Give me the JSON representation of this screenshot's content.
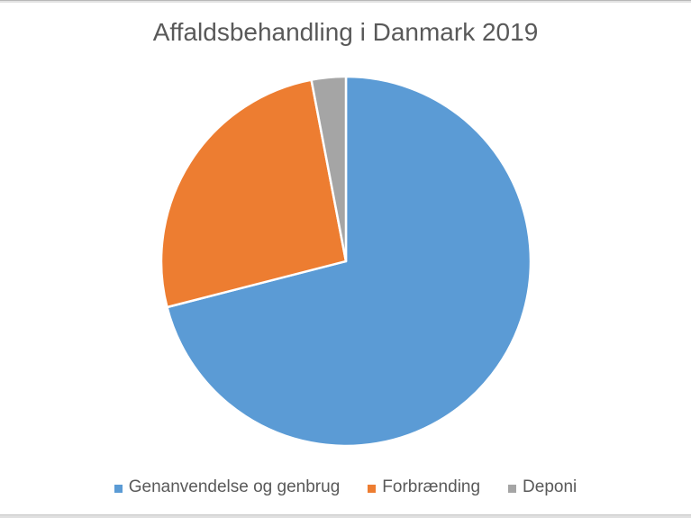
{
  "chart_data": {
    "type": "pie",
    "title": "Affaldsbehandling i Danmark 2019",
    "categories": [
      "Genanvendelse og genbrug",
      "Forbrænding",
      "Deponi"
    ],
    "values": [
      71,
      26,
      3
    ],
    "value_unit": "percent-estimated",
    "colors": [
      "#5B9BD5",
      "#ED7D31",
      "#A5A5A5"
    ],
    "slice_border_color": "#FFFFFF",
    "start_angle": 0,
    "direction": "clockwise",
    "legend_position": "bottom",
    "title_color": "#595959",
    "legend_text_color": "#595959",
    "data_labels": "none"
  },
  "window": {
    "top_edge_line_color": "#B8B8B8",
    "bottom_edge_line_color": "#C6C6C6"
  }
}
